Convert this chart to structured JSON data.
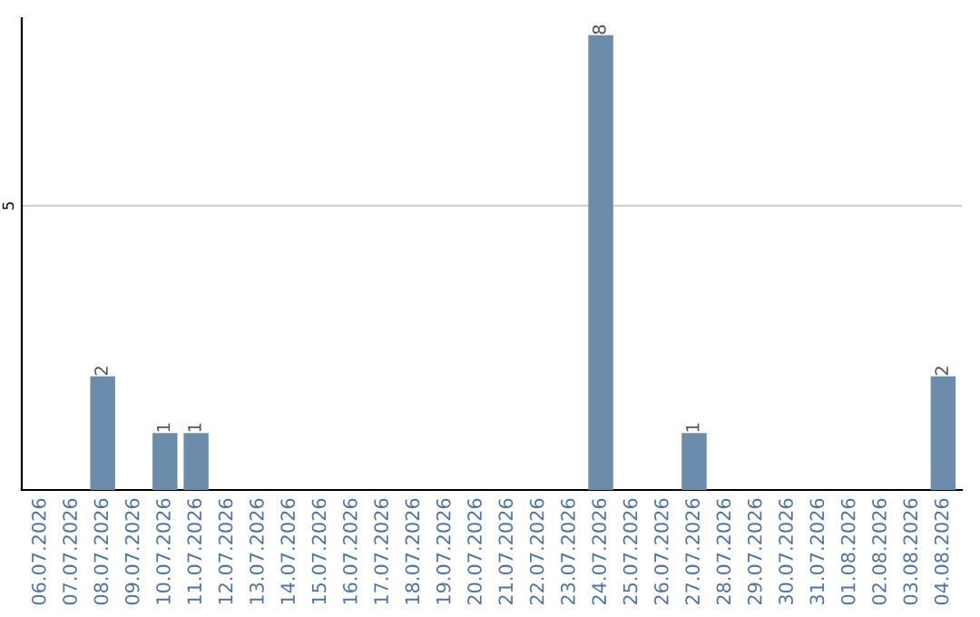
{
  "chart_data": {
    "type": "bar",
    "categories": [
      "06.07.2026",
      "07.07.2026",
      "08.07.2026",
      "09.07.2026",
      "10.07.2026",
      "11.07.2026",
      "12.07.2026",
      "13.07.2026",
      "14.07.2026",
      "15.07.2026",
      "16.07.2026",
      "17.07.2026",
      "18.07.2026",
      "19.07.2026",
      "20.07.2026",
      "21.07.2026",
      "22.07.2026",
      "23.07.2026",
      "24.07.2026",
      "25.07.2026",
      "26.07.2026",
      "27.07.2026",
      "28.07.2026",
      "29.07.2026",
      "30.07.2026",
      "31.07.2026",
      "01.08.2026",
      "02.08.2026",
      "03.08.2026",
      "04.08.2026"
    ],
    "values": [
      0,
      0,
      2,
      0,
      1,
      1,
      0,
      0,
      0,
      0,
      0,
      0,
      0,
      0,
      0,
      0,
      0,
      0,
      8,
      0,
      0,
      1,
      0,
      0,
      0,
      0,
      0,
      0,
      0,
      2
    ],
    "value_labels": [
      null,
      null,
      "2",
      null,
      "1",
      "1",
      null,
      null,
      null,
      null,
      null,
      null,
      null,
      null,
      null,
      null,
      null,
      null,
      "8",
      null,
      null,
      "1",
      null,
      null,
      null,
      null,
      null,
      null,
      null,
      "2"
    ],
    "color": "#6b8cab",
    "ylim": [
      0,
      8.3
    ],
    "yticks": [
      5
    ],
    "grid": "y"
  }
}
